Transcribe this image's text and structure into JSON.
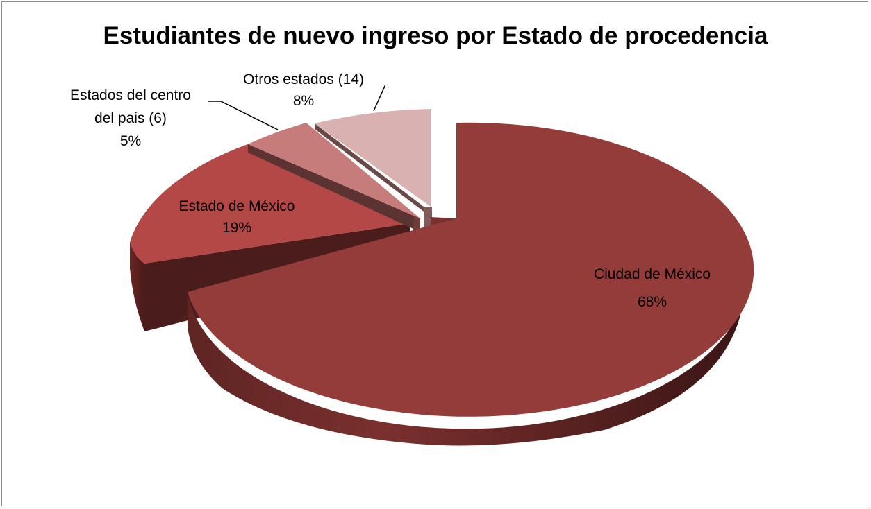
{
  "chart_data": {
    "type": "pie",
    "style": "3d-exploded",
    "title": "Estudiantes de nuevo ingreso por Estado de procedencia",
    "slices": [
      {
        "label": "Ciudad de México",
        "percent": 68,
        "percent_label": "68%",
        "color": "#943c3a"
      },
      {
        "label": "Estado de México",
        "percent": 19,
        "percent_label": "19%",
        "color": "#b44846"
      },
      {
        "label_lines": [
          "Estados del centro",
          "del pais (6)"
        ],
        "percent": 5,
        "percent_label": "5%",
        "color": "#c57c7a"
      },
      {
        "label": "Otros estados (14)",
        "percent": 8,
        "percent_label": "8%",
        "color": "#d9b1b1"
      }
    ],
    "legend": "none"
  }
}
